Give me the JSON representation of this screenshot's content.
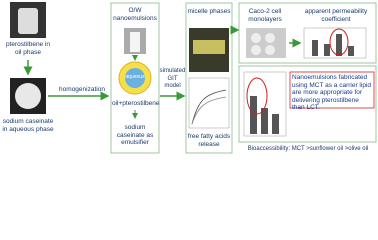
{
  "left": {
    "oil_label": "pterostilbene in oil phase",
    "aqueous_label": "sodium caseinate in aqueous phase"
  },
  "steps": {
    "homogenization": "homogenization",
    "git": "simulated GIT model"
  },
  "emulsion": {
    "title": "O/W nanoemulsions",
    "inner": "aqueous",
    "droplet_label": "oil+pterostilbene",
    "emulsifier": "sodium caseinate as emulsifier"
  },
  "digestion": {
    "micelle": "micelle phases",
    "ffa": "free fatty acids release"
  },
  "absorption": {
    "caco2": "Caco-2 cell monolayers",
    "papp": "apparent permeability coefficient"
  },
  "conclusion": "Nanoemulsions fabricated using MCT as a carrier lipid are more appropriate for delivering pterostilbene than LCT.",
  "bioaccessibility": "Bioaccessibility: MCT >sunflower oil >olive oil"
}
